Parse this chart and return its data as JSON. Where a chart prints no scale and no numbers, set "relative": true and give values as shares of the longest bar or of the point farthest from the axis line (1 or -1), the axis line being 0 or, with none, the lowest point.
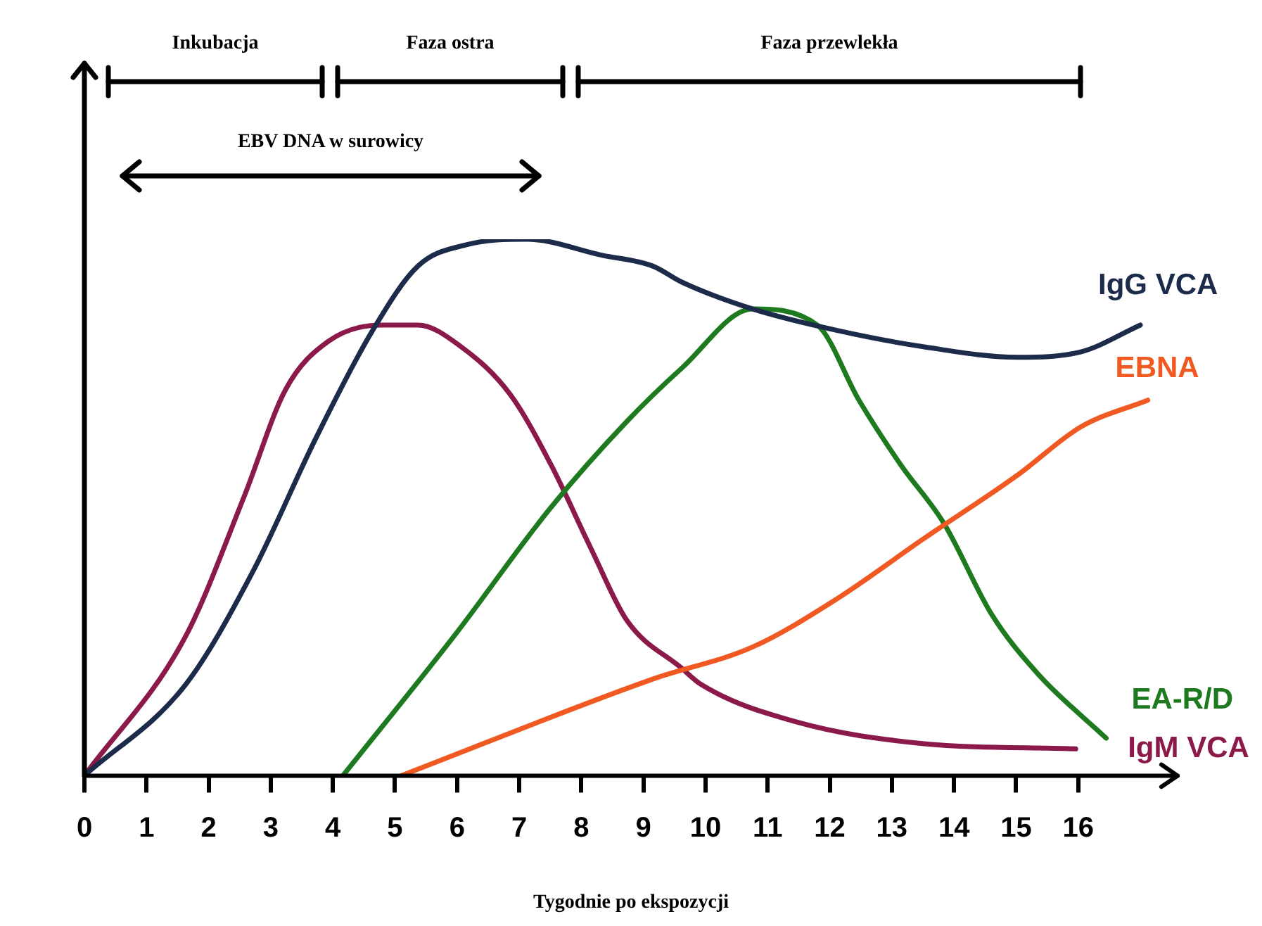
{
  "chart_data": {
    "type": "line",
    "relative": true,
    "xlabel": "Tygodnie po ekspozycji",
    "xlim": [
      0,
      17.6
    ],
    "xticks": [
      0,
      1,
      2,
      3,
      4,
      5,
      6,
      7,
      8,
      9,
      10,
      11,
      12,
      13,
      14,
      15,
      16
    ],
    "series": [
      {
        "name": "IgG VCA",
        "color": "#1c2b4a",
        "x": [
          0,
          1.63,
          2.71,
          3.73,
          4.64,
          5.37,
          6.16,
          7.12,
          8.34,
          9.15,
          9.62,
          10.76,
          12.12,
          13.49,
          15.02,
          16.04,
          17.0
        ],
        "values": [
          0,
          0.17,
          0.38,
          0.63,
          0.83,
          0.95,
          0.99,
          1,
          0.97,
          0.95,
          0.92,
          0.87,
          0.83,
          0.8,
          0.78,
          0.79,
          0.84
        ]
      },
      {
        "name": "EBNA",
        "color": "#f05a22",
        "x": [
          5.1,
          9.15,
          10.76,
          12.12,
          13.49,
          15.02,
          16.04,
          17.12
        ],
        "values": [
          0,
          0.18,
          0.24,
          0.33,
          0.44,
          0.56,
          0.65,
          0.7
        ]
      },
      {
        "name": "EA-R/D",
        "color": "#1e7a1e",
        "x": [
          4.16,
          5.95,
          7.51,
          8.73,
          9.62,
          10.76,
          11.8,
          12.47,
          13.14,
          13.84,
          14.61,
          15.35,
          16.45
        ],
        "values": [
          0,
          0.26,
          0.5,
          0.66,
          0.76,
          0.87,
          0.84,
          0.7,
          0.58,
          0.47,
          0.3,
          0.19,
          0.07
        ]
      },
      {
        "name": "IgM VCA",
        "color": "#8b1a4a",
        "x": [
          0,
          1.63,
          2.57,
          3.24,
          3.93,
          4.78,
          5.37,
          6.06,
          6.86,
          7.51,
          8.17,
          8.73,
          9.62,
          9.93,
          11.47,
          13.49,
          15.96
        ],
        "values": [
          0,
          0.26,
          0.52,
          0.72,
          0.81,
          0.84,
          0.84,
          0.8,
          0.71,
          0.58,
          0.42,
          0.29,
          0.2,
          0.17,
          0.1,
          0.06,
          0.05
        ]
      }
    ],
    "annotations": [
      "Inkubacja",
      "Faza ostra",
      "Faza przewlekła",
      "EBV DNA w surowicy"
    ]
  }
}
